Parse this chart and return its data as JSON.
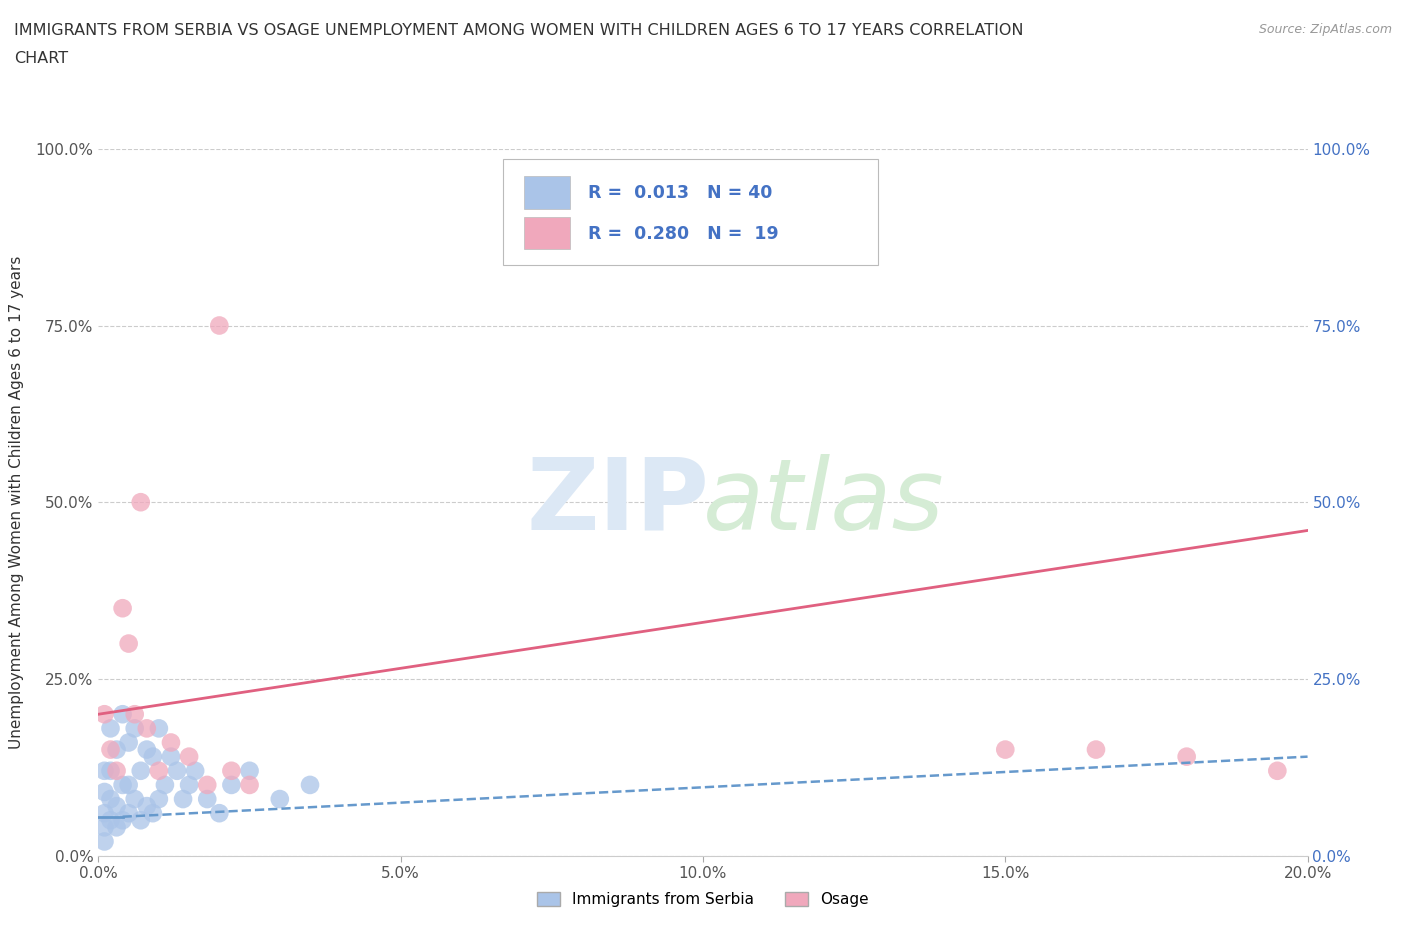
{
  "title_line1": "IMMIGRANTS FROM SERBIA VS OSAGE UNEMPLOYMENT AMONG WOMEN WITH CHILDREN AGES 6 TO 17 YEARS CORRELATION",
  "title_line2": "CHART",
  "source": "Source: ZipAtlas.com",
  "xlim": [
    0.0,
    0.2
  ],
  "ylim": [
    0.0,
    1.0
  ],
  "ylabel": "Unemployment Among Women with Children Ages 6 to 17 years",
  "serbia_color": "#aac4e8",
  "osage_color": "#f0a8bc",
  "serbia_line_color": "#6699cc",
  "osage_line_color": "#e06080",
  "serbia_scatter_x": [
    0.001,
    0.001,
    0.001,
    0.001,
    0.001,
    0.002,
    0.002,
    0.002,
    0.002,
    0.003,
    0.003,
    0.003,
    0.004,
    0.004,
    0.004,
    0.005,
    0.005,
    0.005,
    0.006,
    0.006,
    0.007,
    0.007,
    0.008,
    0.008,
    0.009,
    0.009,
    0.01,
    0.01,
    0.011,
    0.012,
    0.013,
    0.014,
    0.015,
    0.016,
    0.018,
    0.02,
    0.022,
    0.025,
    0.03,
    0.035
  ],
  "serbia_scatter_y": [
    0.02,
    0.04,
    0.06,
    0.09,
    0.12,
    0.05,
    0.08,
    0.12,
    0.18,
    0.04,
    0.07,
    0.15,
    0.05,
    0.1,
    0.2,
    0.06,
    0.1,
    0.16,
    0.08,
    0.18,
    0.05,
    0.12,
    0.07,
    0.15,
    0.06,
    0.14,
    0.08,
    0.18,
    0.1,
    0.14,
    0.12,
    0.08,
    0.1,
    0.12,
    0.08,
    0.06,
    0.1,
    0.12,
    0.08,
    0.1
  ],
  "osage_scatter_x": [
    0.001,
    0.002,
    0.003,
    0.004,
    0.005,
    0.006,
    0.007,
    0.008,
    0.01,
    0.012,
    0.015,
    0.018,
    0.02,
    0.022,
    0.025,
    0.15,
    0.165,
    0.18,
    0.195
  ],
  "osage_scatter_y": [
    0.2,
    0.15,
    0.12,
    0.35,
    0.3,
    0.2,
    0.5,
    0.18,
    0.12,
    0.16,
    0.14,
    0.1,
    0.75,
    0.12,
    0.1,
    0.15,
    0.15,
    0.14,
    0.12
  ],
  "serbia_trend_x": [
    0.0,
    0.004,
    0.2
  ],
  "serbia_trend_y": [
    0.055,
    0.055,
    0.14
  ],
  "osage_trend_x": [
    0.0,
    0.2
  ],
  "osage_trend_y": [
    0.2,
    0.46
  ],
  "xtick_vals": [
    0.0,
    0.05,
    0.1,
    0.15,
    0.2
  ],
  "xtick_labels": [
    "0.0%",
    "5.0%",
    "10.0%",
    "15.0%",
    "20.0%"
  ],
  "ytick_vals": [
    0.0,
    0.25,
    0.5,
    0.75,
    1.0
  ],
  "ytick_labels": [
    "0.0%",
    "25.0%",
    "50.0%",
    "75.0%",
    "100.0%"
  ],
  "right_tick_color": "#4472c4",
  "legend_color": "#4472c4",
  "watermark_zip_color": "#dce8f5",
  "watermark_atlas_color": "#d5ecd5"
}
